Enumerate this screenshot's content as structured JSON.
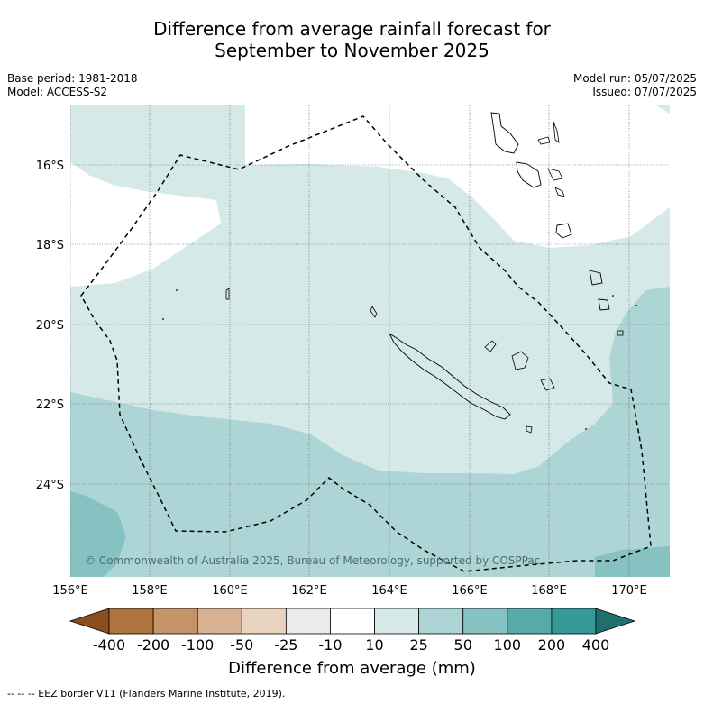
{
  "title": {
    "line1": "Difference from average rainfall forecast for",
    "line2": "September to November 2025"
  },
  "meta": {
    "base_period": "Base period: 1981-2018",
    "model": "Model: ACCESS-S2",
    "model_run": "Model run: 05/07/2025",
    "issued": "Issued: 07/07/2025"
  },
  "map": {
    "lat_labels": [
      "16°S",
      "18°S",
      "20°S",
      "22°S",
      "24°S"
    ],
    "lon_labels": [
      "156°E",
      "158°E",
      "160°E",
      "162°E",
      "164°E",
      "166°E",
      "168°E",
      "170°E"
    ],
    "copyright": "© Commonwealth of Australia 2025, Bureau of Meteorology, supported by COSPPac",
    "colors": {
      "class_10_25": "#d5e9e8",
      "class_25_50": "#add5d5",
      "class_50_100": "#85c2c1",
      "coastline": "#000000",
      "eez_border": "#000000"
    }
  },
  "colorbar": {
    "labels": [
      "-400",
      "-200",
      "-100",
      "-50",
      "-25",
      "-10",
      "10",
      "25",
      "50",
      "100",
      "200",
      "400"
    ],
    "colors": [
      "#8b4e1e",
      "#b07440",
      "#c49468",
      "#d6b292",
      "#e8d3bf",
      "#ebebeb",
      "#ffffff",
      "#d5e9e8",
      "#add5d5",
      "#85c2c1",
      "#57aaaa",
      "#349a98",
      "#1f6f6e"
    ],
    "title": "Difference from average (mm)"
  },
  "footer": {
    "legend_note": "--  --  -- EEZ border V11 (Flanders Marine Institute, 2019)."
  }
}
